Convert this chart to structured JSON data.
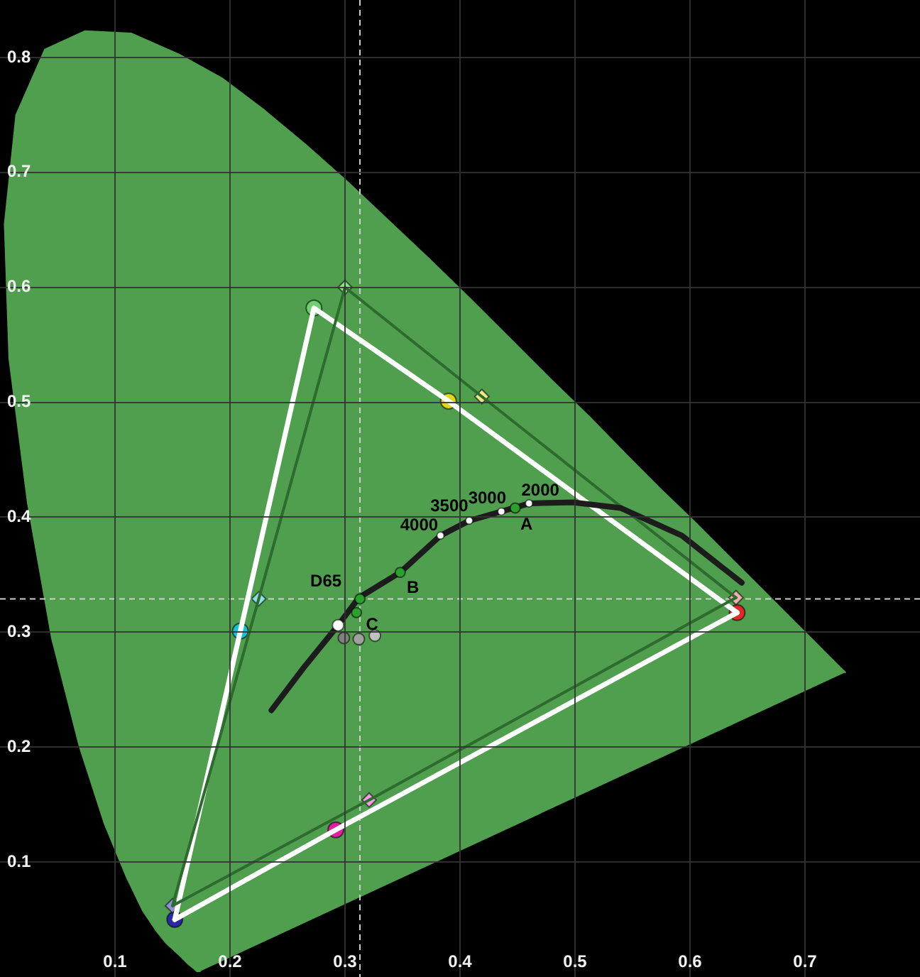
{
  "chart_data": {
    "type": "scatter",
    "xlim": [
      0,
      0.8
    ],
    "ylim": [
      0,
      0.85
    ],
    "xticks": [
      0.1,
      0.2,
      0.3,
      0.4,
      0.5,
      0.6,
      0.7
    ],
    "yticks": [
      0.1,
      0.2,
      0.3,
      0.4,
      0.5,
      0.6,
      0.7,
      0.8
    ],
    "grid": true,
    "ref_lines": [
      {
        "axis": "x",
        "value": 0.313,
        "color": "#d0d0d0",
        "line_style": "dashed"
      },
      {
        "axis": "y",
        "value": 0.329,
        "color": "#d0d0d0",
        "line_style": "dashed"
      }
    ],
    "annotations": [
      {
        "text": "2000",
        "x": 0.46,
        "y": 0.412
      },
      {
        "text": "3000",
        "x": 0.436,
        "y": 0.405
      },
      {
        "text": "3500",
        "x": 0.408,
        "y": 0.397
      },
      {
        "text": "4000",
        "x": 0.383,
        "y": 0.384
      },
      {
        "text": "A",
        "x": 0.448,
        "y": 0.408
      },
      {
        "text": "B",
        "x": 0.348,
        "y": 0.352
      },
      {
        "text": "D65",
        "x": 0.313,
        "y": 0.329
      },
      {
        "text": "C",
        "x": 0.31,
        "y": 0.317
      }
    ],
    "series": [
      {
        "type": "area",
        "marker": "none",
        "color": "#4f9f4f",
        "x": [
          0.174,
          0.173,
          0.173,
          0.171,
          0.169,
          0.164,
          0.157,
          0.144,
          0.136,
          0.124,
          0.11,
          0.091,
          0.069,
          0.045,
          0.024,
          0.008,
          0.004,
          0.014,
          0.039,
          0.074,
          0.114,
          0.155,
          0.193,
          0.23,
          0.266,
          0.302,
          0.337,
          0.373,
          0.409,
          0.444,
          0.479,
          0.513,
          0.545,
          0.575,
          0.603,
          0.627,
          0.666,
          0.692,
          0.708,
          0.719,
          0.726,
          0.73,
          0.735
        ],
        "values": [
          0.005,
          0.005,
          0.005,
          0.005,
          0.007,
          0.011,
          0.018,
          0.03,
          0.04,
          0.058,
          0.087,
          0.133,
          0.201,
          0.295,
          0.413,
          0.538,
          0.655,
          0.75,
          0.807,
          0.823,
          0.821,
          0.803,
          0.782,
          0.754,
          0.724,
          0.692,
          0.659,
          0.625,
          0.59,
          0.555,
          0.52,
          0.487,
          0.454,
          0.424,
          0.397,
          0.373,
          0.334,
          0.308,
          0.292,
          0.281,
          0.274,
          0.27,
          0.265
        ]
      },
      {
        "type": "line",
        "marker": "none",
        "color": "#1c1c1c",
        "x": [
          0.236,
          0.264,
          0.294,
          0.312,
          0.348,
          0.383,
          0.408,
          0.436,
          0.46,
          0.498,
          0.54,
          0.593,
          0.645
        ],
        "values": [
          0.232,
          0.269,
          0.306,
          0.33,
          0.352,
          0.384,
          0.397,
          0.405,
          0.412,
          0.413,
          0.408,
          0.384,
          0.343
        ]
      },
      {
        "type": "line",
        "marker": "none",
        "color": "#2e6b2e",
        "x": [
          0.15,
          0.225,
          0.3,
          0.419,
          0.64
        ],
        "values": [
          0.062,
          0.329,
          0.6,
          0.505,
          0.33
        ]
      },
      {
        "type": "line",
        "marker": "none",
        "color": "#2e6b2e",
        "x": [
          0.15,
          0.321,
          0.64
        ],
        "values": [
          0.062,
          0.154,
          0.33
        ]
      },
      {
        "type": "line",
        "marker": "none",
        "color": "#ffffff",
        "x": [
          0.152,
          0.209,
          0.273,
          0.39,
          0.641
        ],
        "values": [
          0.05,
          0.301,
          0.582,
          0.501,
          0.317
        ]
      },
      {
        "type": "line",
        "marker": "none",
        "color": "#ffffff",
        "x": [
          0.152,
          0.292,
          0.641
        ],
        "values": [
          0.05,
          0.128,
          0.317
        ]
      },
      {
        "type": "scatter",
        "marker": "diamond",
        "x": [
          0.64,
          0.419,
          0.3,
          0.225,
          0.15,
          0.321
        ],
        "values": [
          0.33,
          0.505,
          0.6,
          0.329,
          0.062,
          0.154
        ],
        "colors": [
          "#f4b0b0",
          "#f0e890",
          "#90e090",
          "#90e0e0",
          "#9090d8",
          "#f0a0e0"
        ]
      },
      {
        "type": "scatter",
        "marker": "circle",
        "x": [
          0.641,
          0.39,
          0.273,
          0.209,
          0.152,
          0.292
        ],
        "values": [
          0.317,
          0.501,
          0.582,
          0.301,
          0.05,
          0.128
        ],
        "colors": [
          "#e02828",
          "#e0d820",
          "#70d070",
          "#20c0d0",
          "#2828a8",
          "#e020a0"
        ]
      },
      {
        "type": "scatter",
        "marker": "circle",
        "x": [
          0.294,
          0.299,
          0.312,
          0.326
        ],
        "values": [
          0.306,
          0.295,
          0.294,
          0.297
        ],
        "colors": [
          "#ffffff",
          "#808080",
          "#a0a0a0",
          "#c0c0c0"
        ]
      },
      {
        "type": "scatter",
        "marker": "circle",
        "color": "#2ca02c",
        "x": [
          0.313,
          0.31,
          0.348,
          0.448
        ],
        "values": [
          0.329,
          0.317,
          0.352,
          0.408
        ]
      },
      {
        "type": "scatter",
        "marker": "circle",
        "color": "#ffffff",
        "x": [
          0.383,
          0.408,
          0.436,
          0.46
        ],
        "values": [
          0.384,
          0.397,
          0.405,
          0.412
        ]
      }
    ]
  }
}
